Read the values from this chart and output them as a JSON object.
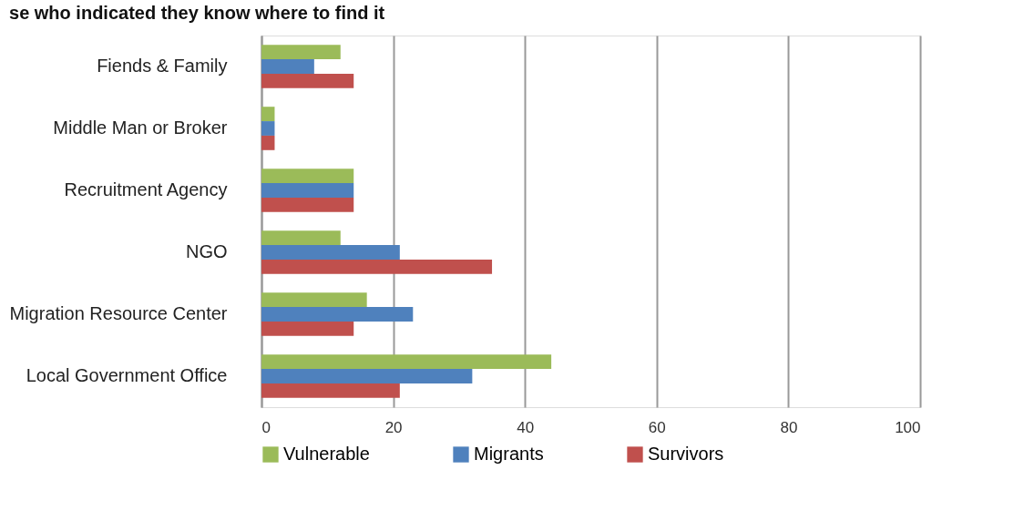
{
  "chart_data": {
    "type": "bar",
    "orientation": "horizontal",
    "title": "se who indicated they know where to find it",
    "categories": [
      "Fiends & Family",
      "Middle Man or Broker",
      "Recruitment Agency",
      "NGO",
      "Migration Resource Center",
      "Local Government Office"
    ],
    "series": [
      {
        "name": "Vulnerable",
        "color": "#9bbb59",
        "values": [
          12,
          2,
          14,
          12,
          16,
          44
        ]
      },
      {
        "name": "Migrants",
        "color": "#4f81bd",
        "values": [
          8,
          2,
          14,
          21,
          23,
          32
        ]
      },
      {
        "name": "Survivors",
        "color": "#c0504d",
        "values": [
          14,
          2,
          14,
          35,
          14,
          21
        ]
      }
    ],
    "xlim": [
      0,
      100
    ],
    "xticks": [
      0,
      20,
      40,
      60,
      80,
      100
    ],
    "grid": "x",
    "legend": "bottom"
  }
}
